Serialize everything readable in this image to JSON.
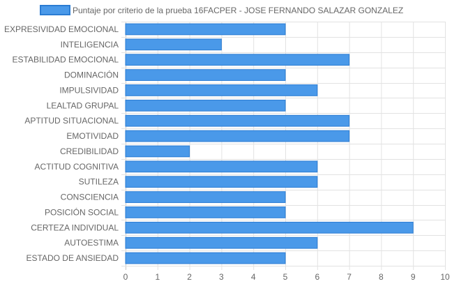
{
  "chart_data": {
    "type": "bar",
    "orientation": "horizontal",
    "categories": [
      "EXPRESIVIDAD EMOCIONAL",
      "INTELIGENCIA",
      "ESTABILIDAD EMOCIONAL",
      "DOMINACIÓN",
      "IMPULSIVIDAD",
      "LEALTAD GRUPAL",
      "APTITUD SITUACIONAL",
      "EMOTIVIDAD",
      "CREDIBILIDAD",
      "ACTITUD COGNITIVA",
      "SUTILEZA",
      "CONSCIENCIA",
      "POSICIÓN SOCIAL",
      "CERTEZA INDIVIDUAL",
      "AUTOESTIMA",
      "ESTADO DE ANSIEDAD"
    ],
    "series": [
      {
        "name": "Puntaje por criterio de la prueba 16FACPER - JOSE FERNANDO SALAZAR GONZALEZ",
        "values": [
          5,
          3,
          7,
          5,
          6,
          5,
          7,
          7,
          2,
          6,
          6,
          5,
          5,
          9,
          6,
          5
        ],
        "color": "#4a99e9",
        "border_color": "#2b7cd3"
      }
    ],
    "xlim": [
      0,
      10
    ],
    "x_ticks": [
      0,
      1,
      2,
      3,
      4,
      5,
      6,
      7,
      8,
      9,
      10
    ],
    "grid": true,
    "legend_position": "top"
  }
}
